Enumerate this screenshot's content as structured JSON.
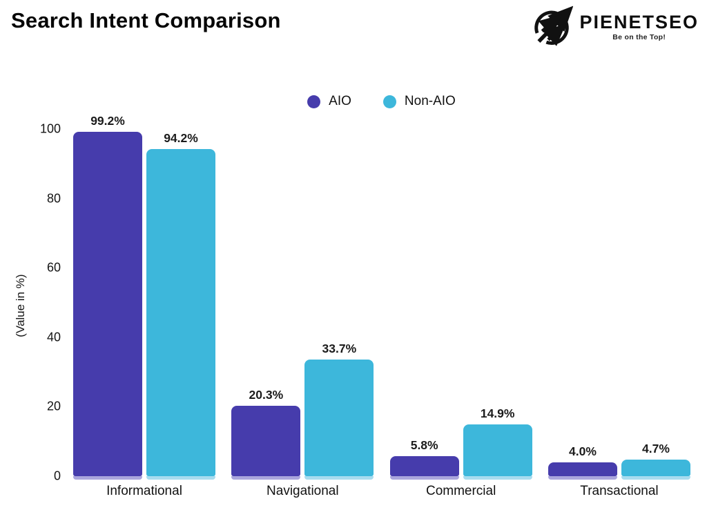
{
  "header": {
    "title": "Search Intent Comparison",
    "logo": {
      "brand": "PIENETSEO",
      "tagline": "Be on the Top!"
    }
  },
  "chart_data": {
    "type": "bar",
    "title": "Search Intent Comparison",
    "categories": [
      "Informational",
      "Navigational",
      "Commercial",
      "Transactional"
    ],
    "series": [
      {
        "name": "AIO",
        "color": "#463CAC",
        "light_color": "#aaa5dd",
        "values": [
          99.2,
          20.3,
          5.8,
          4.0
        ],
        "labels": [
          "99.2%",
          "20.3%",
          "5.8%",
          "4.0%"
        ]
      },
      {
        "name": "Non-AIO",
        "color": "#3DB7DB",
        "light_color": "#a8dcef",
        "values": [
          94.2,
          33.7,
          14.9,
          4.7
        ],
        "labels": [
          "94.2%",
          "33.7%",
          "14.9%",
          "4.7%"
        ]
      }
    ],
    "xlabel": "",
    "ylabel": "(Value in %)",
    "ylim": [
      0,
      100
    ],
    "yticks": [
      0,
      20,
      40,
      60,
      80,
      100
    ],
    "grid": false,
    "legend_position": "top-center"
  }
}
